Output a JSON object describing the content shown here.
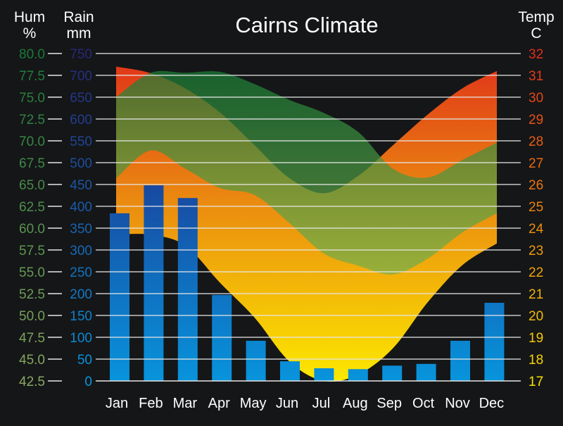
{
  "chart_data": {
    "type": "area+bar",
    "title": "Cairns Climate",
    "categories": [
      "Jan",
      "Feb",
      "Mar",
      "Apr",
      "May",
      "Jun",
      "Jul",
      "Aug",
      "Sep",
      "Oct",
      "Nov",
      "Dec"
    ],
    "axes": {
      "humidity": {
        "label_line1": "Hum",
        "label_line2": "%",
        "range": [
          42.5,
          80.0
        ],
        "ticks": [
          "80.0",
          "77.5",
          "75.0",
          "72.5",
          "70.0",
          "67.5",
          "65.0",
          "62.5",
          "60.0",
          "57.5",
          "55.0",
          "52.5",
          "50.0",
          "47.5",
          "45.0",
          "42.5"
        ]
      },
      "rain": {
        "label_line1": "Rain",
        "label_line2": "mm",
        "range": [
          0,
          750
        ],
        "ticks": [
          "750",
          "700",
          "650",
          "600",
          "550",
          "500",
          "450",
          "400",
          "350",
          "300",
          "250",
          "200",
          "150",
          "100",
          "50",
          "0"
        ]
      },
      "temp": {
        "label_line1": "Temp",
        "label_line2": "C",
        "range": [
          17,
          32
        ],
        "ticks": [
          "32",
          "31",
          "30",
          "29",
          "28",
          "27",
          "26",
          "25",
          "24",
          "23",
          "22",
          "21",
          "20",
          "19",
          "18",
          "17"
        ]
      }
    },
    "series": {
      "rain_mm": [
        384,
        448,
        419,
        197,
        92,
        45,
        29,
        27,
        35,
        39,
        92,
        179
      ],
      "temp_max": [
        31.4,
        31.1,
        30.4,
        29.3,
        27.8,
        26.3,
        25.6,
        26.4,
        27.8,
        29.2,
        30.4,
        31.2
      ],
      "temp_min": [
        23.7,
        23.7,
        23.2,
        21.5,
        19.9,
        17.9,
        17.0,
        17.3,
        18.5,
        20.6,
        22.3,
        23.3
      ],
      "humidity_max": [
        75.0,
        77.8,
        77.8,
        77.9,
        76.5,
        74.7,
        73.2,
        71.0,
        66.8,
        65.8,
        67.8,
        69.8
      ],
      "humidity_min": [
        65.7,
        68.9,
        66.8,
        64.6,
        63.8,
        60.6,
        57.1,
        55.7,
        54.7,
        56.5,
        59.5,
        61.7
      ]
    },
    "grid": true,
    "colors": {
      "background": "#151618",
      "temp_top": "#e0301a",
      "temp_mid": "#ea8a10",
      "temp_bottom": "#fce800",
      "hum_top": "#1a7a3a",
      "hum_bottom": "#a0c050",
      "rain_top": "#1848a0",
      "rain_bottom": "#0894dc"
    }
  }
}
